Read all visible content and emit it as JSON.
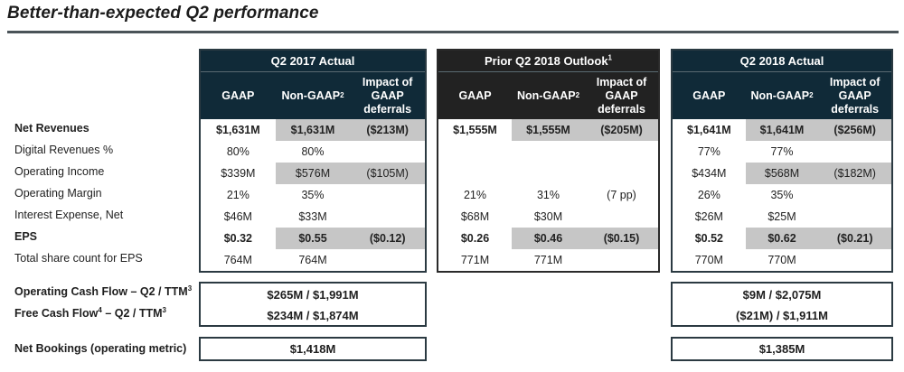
{
  "title": "Better-than-expected Q2 performance",
  "row_labels": [
    "Net Revenues",
    "Digital Revenues %",
    "Operating Income",
    "Operating Margin",
    "Interest Expense, Net",
    "EPS",
    "Total share count for EPS"
  ],
  "subheaders": {
    "gaap": "GAAP",
    "non_gaap": "Non-GAAP",
    "non_gaap_sup": "2",
    "impact_line1": "Impact of",
    "impact_line2": "GAAP",
    "impact_line3": "deferrals"
  },
  "colors": {
    "header_navy": "#102a38",
    "header_black": "#222222",
    "shade": "#c6c6c6"
  },
  "tables": [
    {
      "title": "Q2 2017 Actual",
      "title_sup": "",
      "rows": [
        [
          "$1,631M",
          "$1,631M",
          "($213M)"
        ],
        [
          "80%",
          "80%",
          ""
        ],
        [
          "$339M",
          "$576M",
          "($105M)"
        ],
        [
          "21%",
          "35%",
          ""
        ],
        [
          "$46M",
          "$33M",
          ""
        ],
        [
          "$0.32",
          "$0.55",
          "($0.12)"
        ],
        [
          "764M",
          "764M",
          ""
        ]
      ]
    },
    {
      "title": "Prior Q2 2018 Outlook",
      "title_sup": "1",
      "rows": [
        [
          "$1,555M",
          "$1,555M",
          "($205M)"
        ],
        [
          "",
          "",
          ""
        ],
        [
          "",
          "",
          ""
        ],
        [
          "21%",
          "31%",
          "(7 pp)"
        ],
        [
          "$68M",
          "$30M",
          ""
        ],
        [
          "$0.26",
          "$0.46",
          "($0.15)"
        ],
        [
          "771M",
          "771M",
          ""
        ]
      ]
    },
    {
      "title": "Q2 2018 Actual",
      "title_sup": "",
      "rows": [
        [
          "$1,641M",
          "$1,641M",
          "($256M)"
        ],
        [
          "77%",
          "77%",
          ""
        ],
        [
          "$434M",
          "$568M",
          "($182M)"
        ],
        [
          "26%",
          "35%",
          ""
        ],
        [
          "$26M",
          "$25M",
          ""
        ],
        [
          "$0.52",
          "$0.62",
          "($0.21)"
        ],
        [
          "770M",
          "770M",
          ""
        ]
      ]
    }
  ],
  "cash_flow": {
    "label_ocf": "Operating Cash Flow – Q2 / TTM",
    "label_ocf_sup": "3",
    "label_fcf_a": "Free Cash Flow",
    "label_fcf_sup1": "4",
    "label_fcf_b": " – Q2 / TTM",
    "label_fcf_sup2": "3",
    "q2_2017": {
      "ocf": "$265M / $1,991M",
      "fcf": "$234M / $1,874M"
    },
    "q2_2018": {
      "ocf": "$9M / $2,075M",
      "fcf": "($21M) / $1,911M"
    }
  },
  "bookings": {
    "label": "Net Bookings (operating metric)",
    "q2_2017": "$1,418M",
    "q2_2018": "$1,385M"
  }
}
